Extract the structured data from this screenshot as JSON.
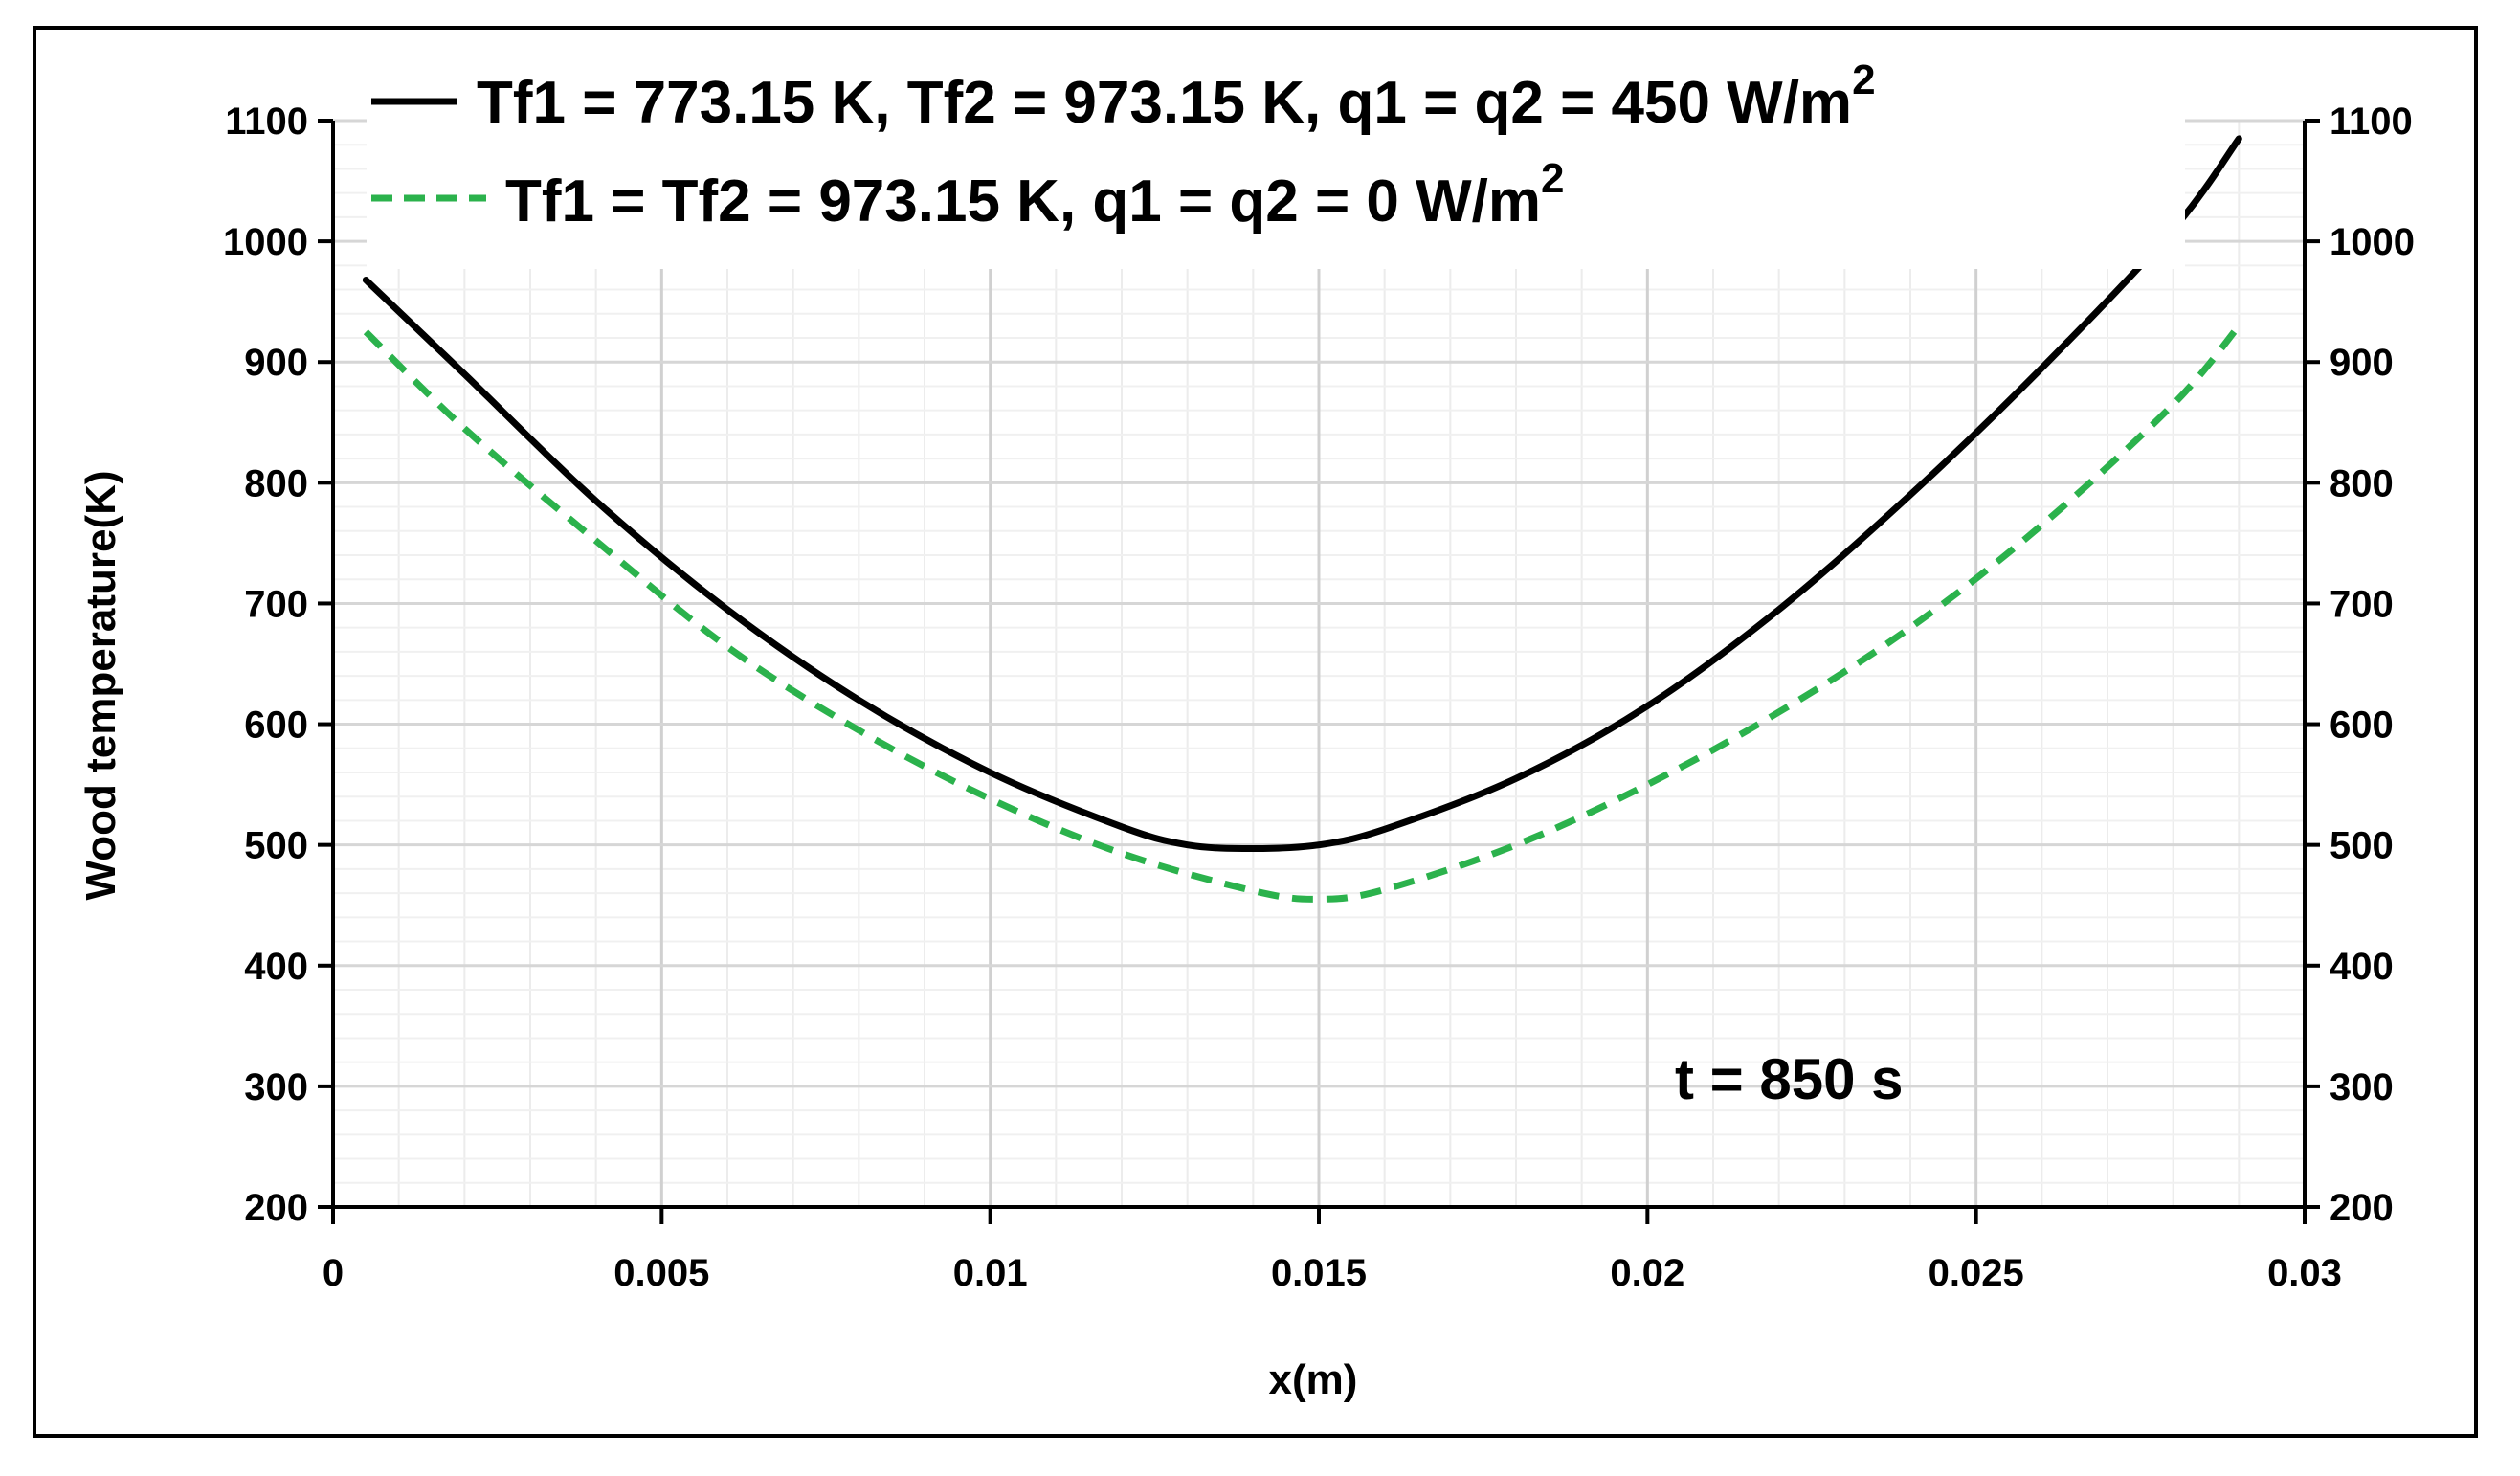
{
  "chart_data": {
    "type": "line",
    "xlabel": "x(m)",
    "ylabel": "Wood temperature(K)",
    "xlim": [
      0,
      0.03
    ],
    "ylim": [
      200,
      1100
    ],
    "xticks": [
      0,
      0.005,
      0.01,
      0.015,
      0.02,
      0.025,
      0.03
    ],
    "xtick_labels": [
      "0",
      "0.005",
      "0.01",
      "0.015",
      "0.02",
      "0.025",
      "0.03"
    ],
    "yticks": [
      200,
      300,
      400,
      500,
      600,
      700,
      800,
      900,
      1000,
      1100
    ],
    "ytick_labels": [
      "200",
      "300",
      "400",
      "500",
      "600",
      "700",
      "800",
      "900",
      "1000",
      "1100"
    ],
    "secondary_y_axis": true,
    "grid": true,
    "legend_position": "top-left",
    "annotation": "t = 850 s",
    "series": [
      {
        "name": "Tf1 = 773.15 K, Tf2 = 973.15 K, q1 = q2 = 450  W/m",
        "name_superscript": "2",
        "color": "#000000",
        "style": "solid",
        "x": [
          0.0005,
          0.002,
          0.004,
          0.006,
          0.008,
          0.01,
          0.012,
          0.013,
          0.014,
          0.015,
          0.016,
          0.018,
          0.02,
          0.022,
          0.024,
          0.026,
          0.028,
          0.029
        ],
        "y": [
          968,
          890,
          785,
          695,
          620,
          560,
          515,
          500,
          497,
          500,
          513,
          555,
          615,
          695,
          790,
          895,
          1010,
          1085
        ]
      },
      {
        "name": "Tf1 = Tf2 = 973.15 K, q1 = q2 = 0 W/m",
        "name_superscript": "2",
        "color": "#2bb24c",
        "style": "dashed",
        "x": [
          0.0005,
          0.002,
          0.004,
          0.006,
          0.008,
          0.01,
          0.012,
          0.014,
          0.015,
          0.016,
          0.018,
          0.02,
          0.022,
          0.024,
          0.026,
          0.028,
          0.029
        ],
        "y": [
          925,
          845,
          752,
          664,
          595,
          538,
          493,
          462,
          455,
          463,
          500,
          550,
          610,
          680,
          765,
          865,
          930
        ]
      }
    ]
  }
}
